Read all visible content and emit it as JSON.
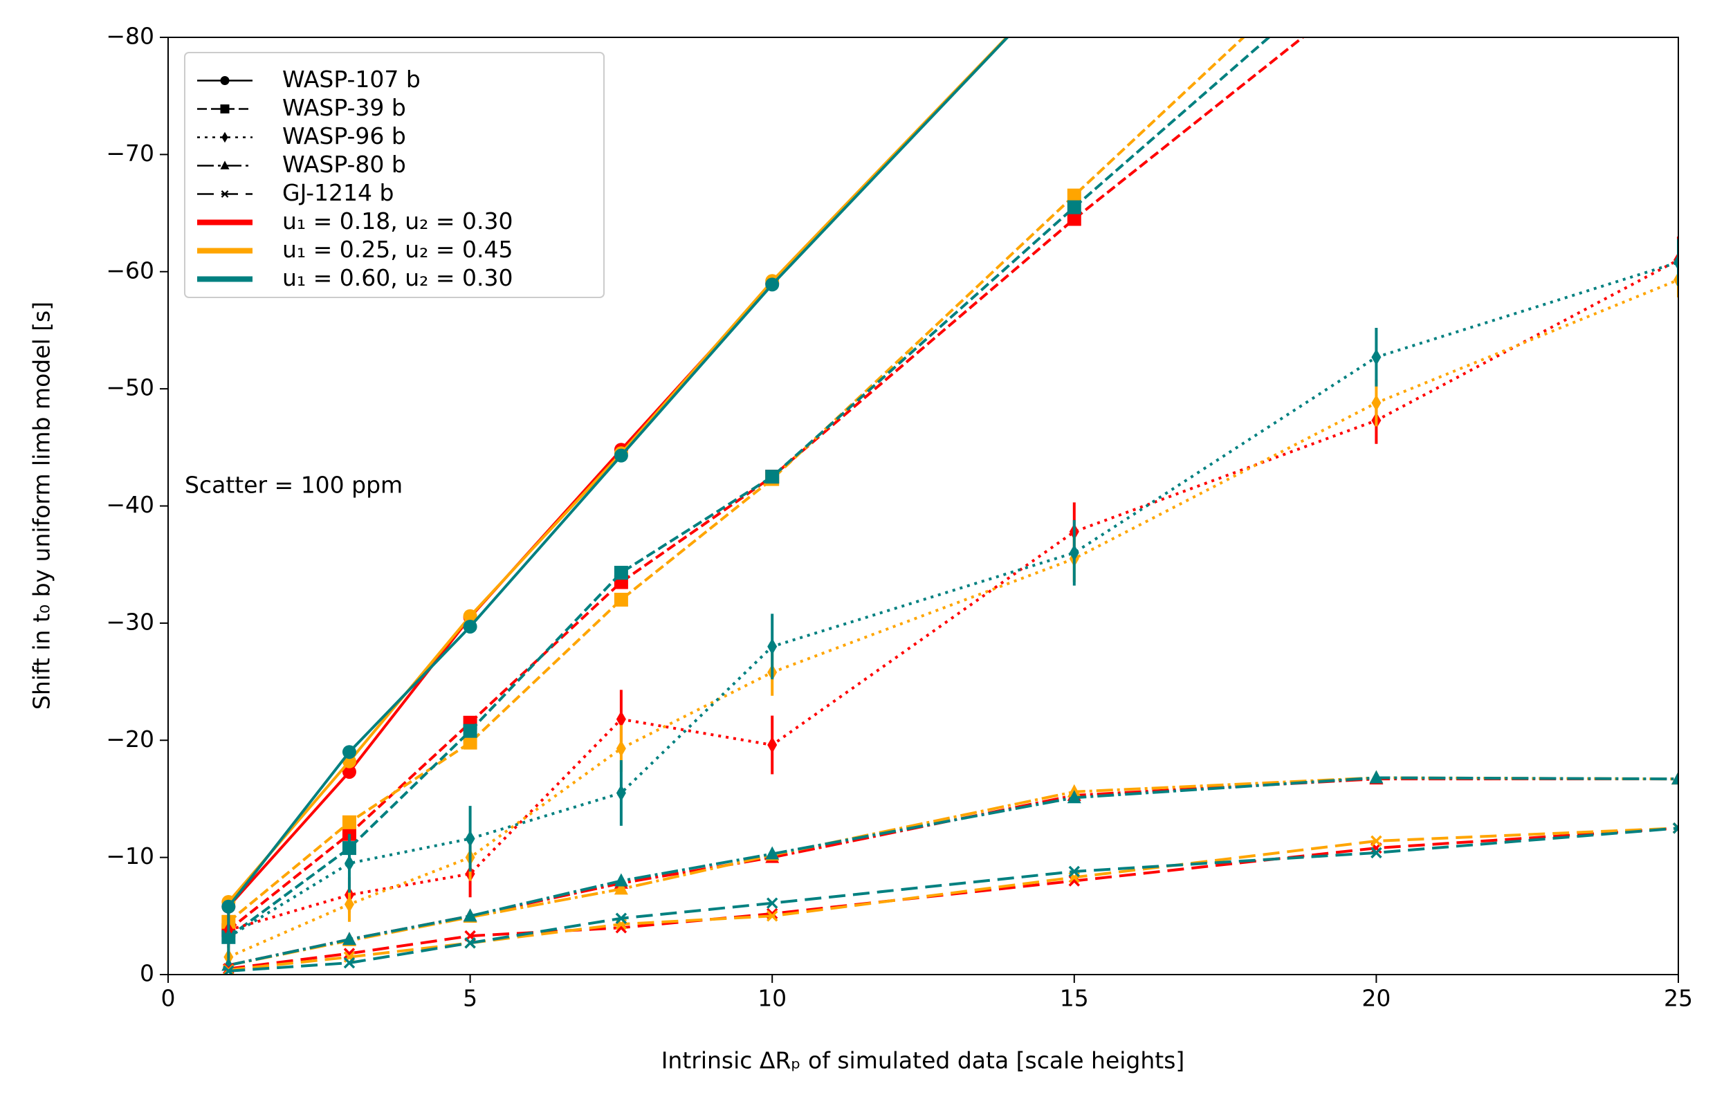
{
  "chart_data": {
    "type": "line",
    "xlabel": "Intrinsic ΔRₚ of simulated data [scale heights]",
    "ylabel": "Shift in t₀ by uniform limb model [s]",
    "annotation": "Scatter = 100 ppm",
    "xlim": [
      0,
      25
    ],
    "ylim": [
      0,
      -80
    ],
    "xticks": [
      0,
      5,
      10,
      15,
      20,
      25
    ],
    "yticks": [
      0,
      {
        "value": -10,
        "label": "−10"
      },
      {
        "value": -20,
        "label": "−20"
      },
      {
        "value": -30,
        "label": "−30"
      },
      {
        "value": -40,
        "label": "−40"
      },
      {
        "value": -50,
        "label": "−50"
      },
      {
        "value": -60,
        "label": "−60"
      },
      {
        "value": -70,
        "label": "−70"
      },
      {
        "value": -80,
        "label": "−80"
      }
    ],
    "legend": "upper left",
    "models": [
      {
        "name": "u₁ = 0.18, u₂ = 0.30",
        "color": "#ff0000"
      },
      {
        "name": "u₁ = 0.25, u₂ = 0.45",
        "color": "#ffa500"
      },
      {
        "name": "u₁ = 0.60, u₂ = 0.30",
        "color": "#008080"
      }
    ],
    "planets": [
      {
        "name": "WASP-107 b",
        "marker": "circle",
        "dash": "solid",
        "x": [
          1,
          3,
          5,
          7.5,
          10,
          15
        ],
        "series": [
          {
            "values": [
              -5.8,
              -17.3,
              -30.5,
              -44.8,
              -59,
              -86
            ]
          },
          {
            "values": [
              -6.2,
              -18.2,
              -30.6,
              -44.5,
              -59.2,
              -86
            ]
          },
          {
            "values": [
              -5.8,
              -19,
              -29.7,
              -44.3,
              -58.9,
              -86
            ]
          }
        ]
      },
      {
        "name": "WASP-39 b",
        "marker": "square",
        "dash": "dashed",
        "x": [
          1,
          3,
          5,
          7.5,
          10,
          15,
          20
        ],
        "series": [
          {
            "values": [
              -3.8,
              -12,
              -21.5,
              -33.5,
              -42.5,
              -64.5,
              -85
            ]
          },
          {
            "values": [
              -4.5,
              -13,
              -19.8,
              -32,
              -42.3,
              -66.5,
              -90.6
            ]
          },
          {
            "values": [
              -3.2,
              -10.8,
              -20.8,
              -34.3,
              -42.5,
              -65.5,
              -88
            ]
          }
        ]
      },
      {
        "name": "WASP-96 b",
        "marker": "thin-diamond",
        "dash": "dotted",
        "x": [
          1,
          3,
          5,
          7.5,
          10,
          15,
          20,
          25
        ],
        "series": [
          {
            "values": [
              -3.8,
              -6.8,
              -8.6,
              -21.8,
              -19.6,
              -37.8,
              -47.3,
              -61
            ],
            "errors": [
              1.5,
              1.5,
              2,
              2.5,
              2.5,
              2.5,
              2,
              2
            ]
          },
          {
            "values": [
              -1.5,
              -6,
              -10,
              -19.3,
              -25.8,
              -35.5,
              -48.8,
              -59.3
            ],
            "errors": [
              1,
              1.5,
              2,
              2,
              2,
              2,
              2,
              1.5
            ]
          },
          {
            "values": [
              -3.2,
              -9.5,
              -11.6,
              -15.5,
              -28,
              -36,
              -52.7,
              -60.8
            ],
            "errors": [
              2.5,
              2.5,
              2.8,
              2.8,
              2.8,
              2.8,
              2.5,
              2
            ]
          }
        ]
      },
      {
        "name": "WASP-80 b",
        "marker": "triangle",
        "dash": "dashdot",
        "x": [
          1,
          3,
          5,
          7.5,
          10,
          15,
          20,
          25
        ],
        "series": [
          {
            "values": [
              -0.8,
              -3,
              -5,
              -7.8,
              -10,
              -15.3,
              -16.7,
              -16.7
            ]
          },
          {
            "values": [
              -0.8,
              -2.9,
              -4.9,
              -7.3,
              -10.2,
              -15.6,
              -16.8,
              -16.7
            ]
          },
          {
            "values": [
              -0.8,
              -3,
              -5,
              -8,
              -10.3,
              -15.1,
              -16.8,
              -16.7
            ]
          }
        ]
      },
      {
        "name": "GJ-1214 b",
        "marker": "x",
        "dash": "longdash",
        "x": [
          1,
          3,
          5,
          7.5,
          10,
          15,
          20,
          25
        ],
        "series": [
          {
            "values": [
              -0.5,
              -1.8,
              -3.3,
              -4,
              -5.2,
              -8,
              -10.8,
              -12.5
            ]
          },
          {
            "values": [
              -0.4,
              -1.5,
              -2.7,
              -4.3,
              -5,
              -8.3,
              -11.4,
              -12.5
            ]
          },
          {
            "values": [
              -0.3,
              -1,
              -2.7,
              -4.8,
              -6.1,
              -8.8,
              -10.4,
              -12.5
            ]
          }
        ]
      }
    ]
  }
}
